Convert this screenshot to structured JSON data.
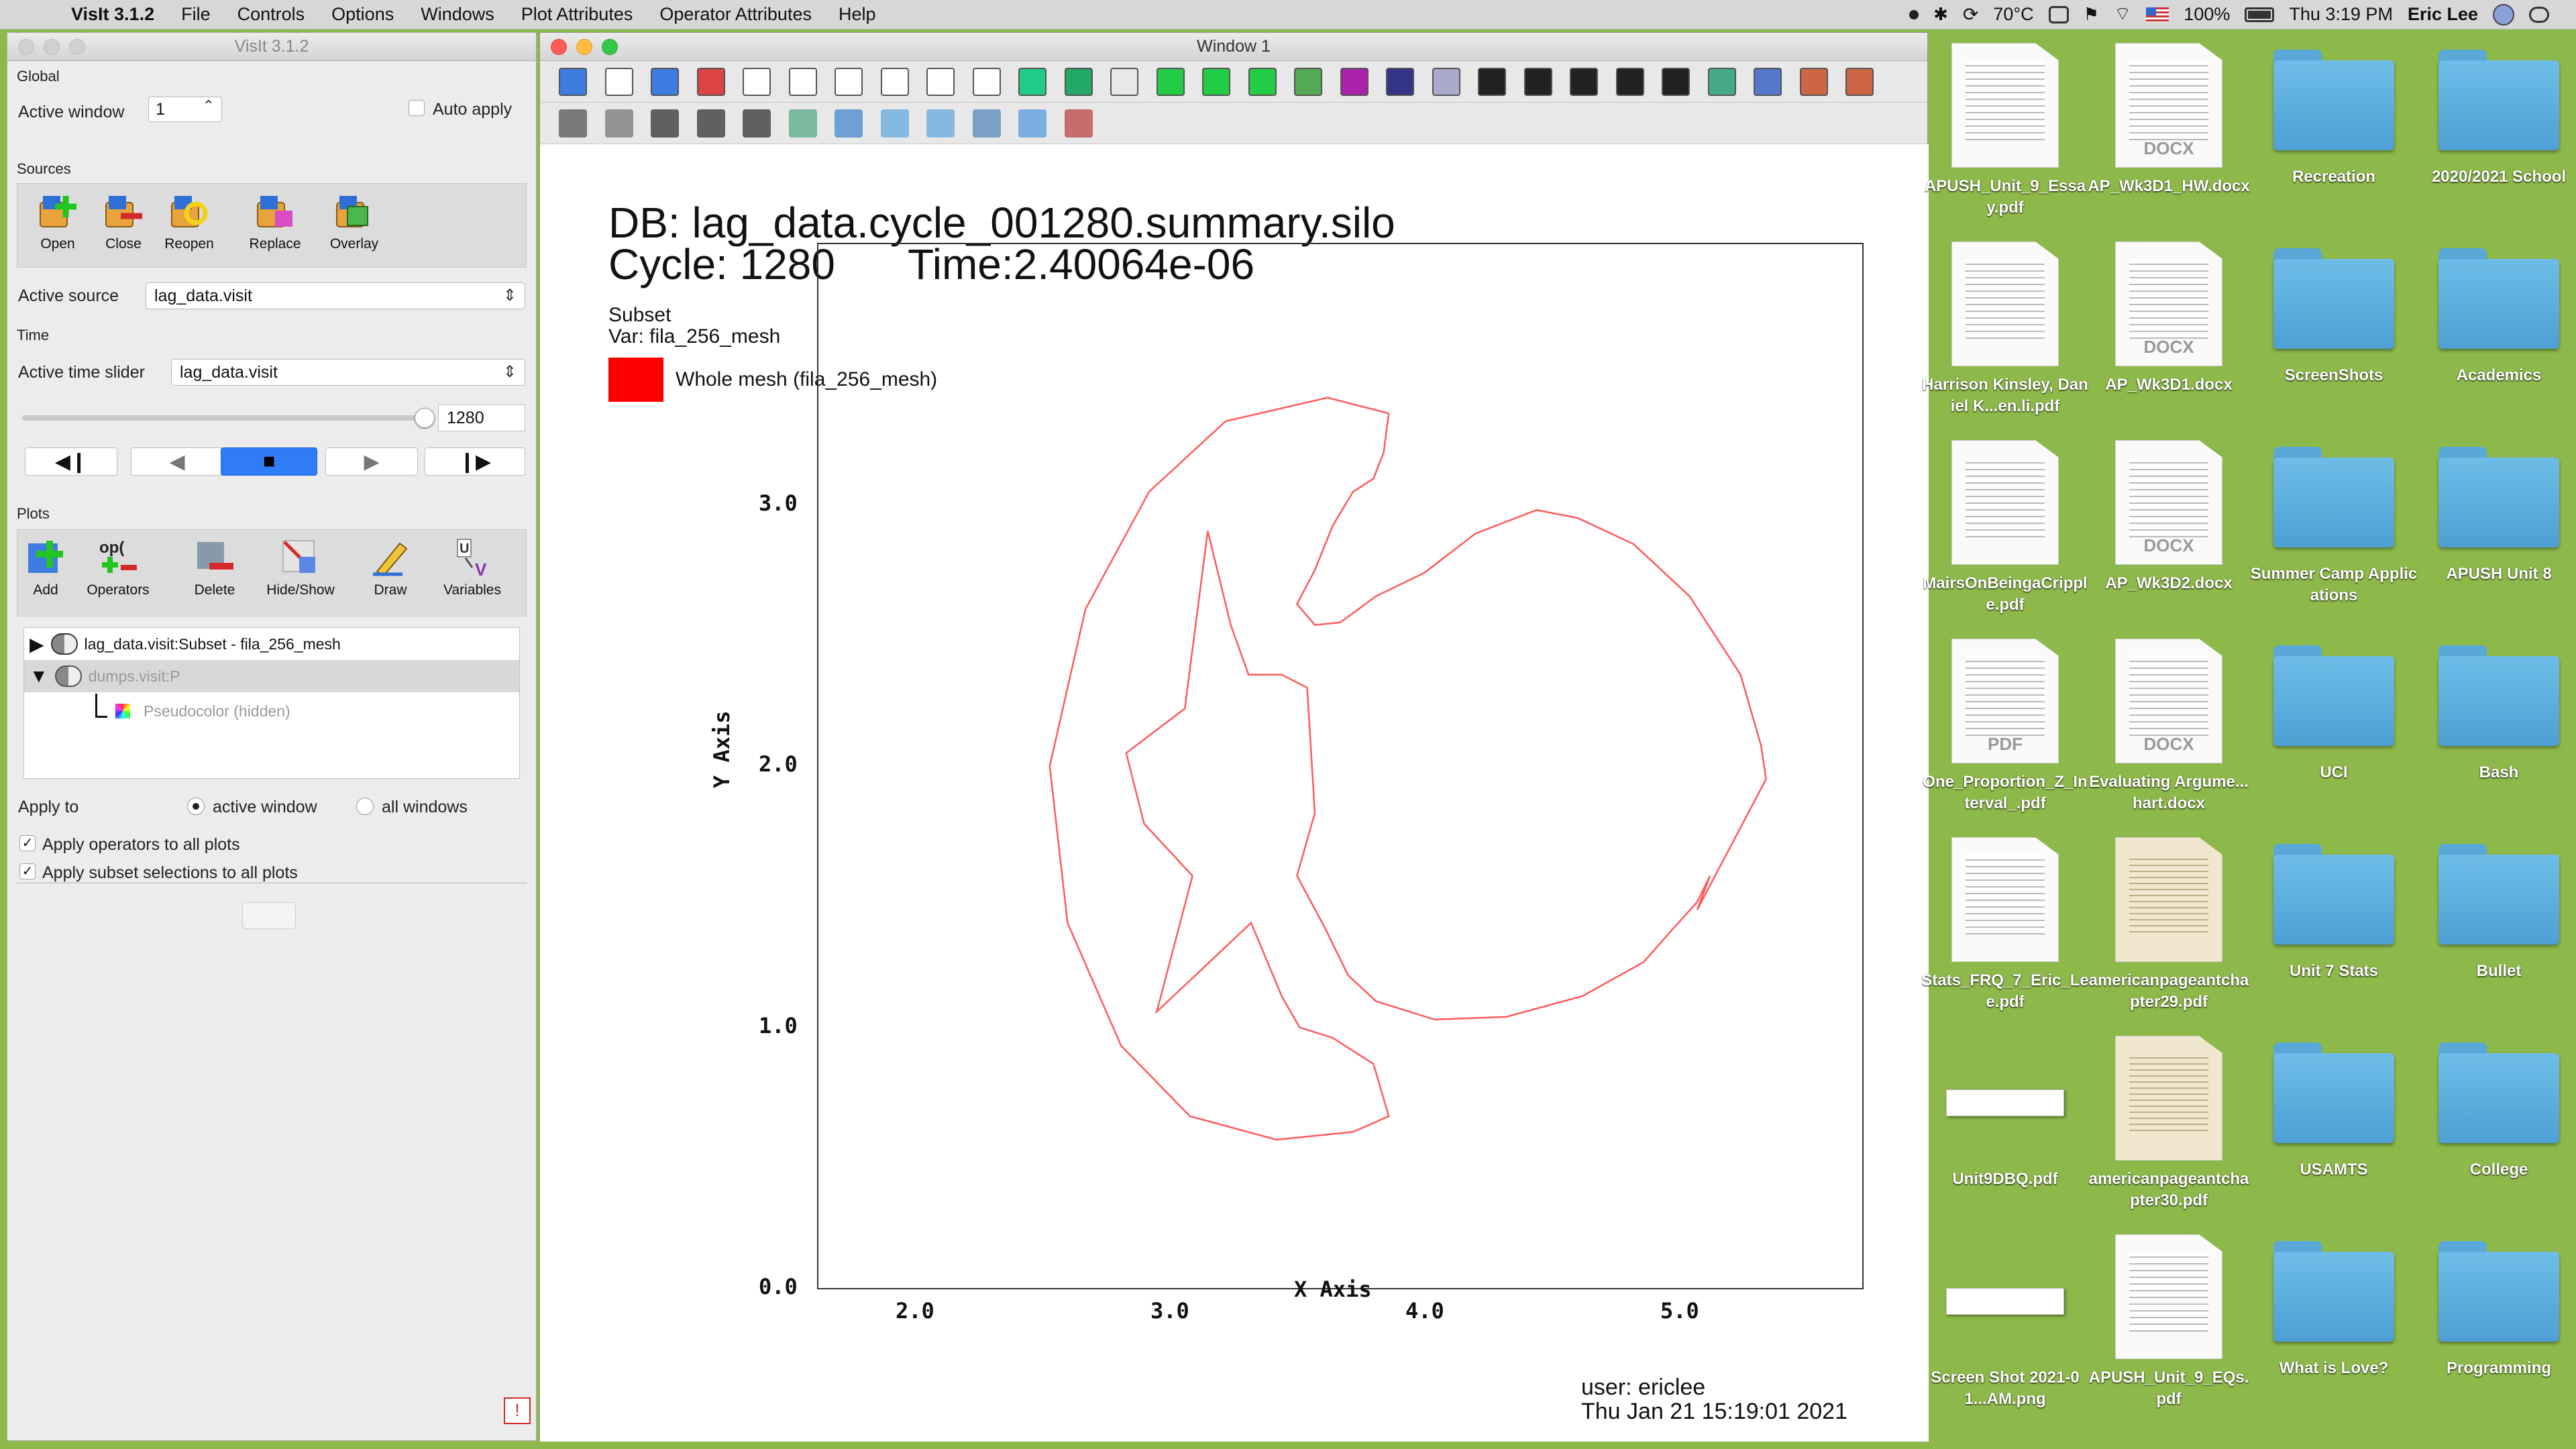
{
  "menubar": {
    "app_name": "VisIt 3.1.2",
    "items": [
      "File",
      "Controls",
      "Options",
      "Windows",
      "Plot Attributes",
      "Operator Attributes",
      "Help"
    ],
    "temperature": "70°C",
    "battery": "100%",
    "clock": "Thu 3:19 PM",
    "user": "Eric Lee"
  },
  "control_window": {
    "title": "VisIt 3.1.2",
    "global_label": "Global",
    "active_window_label": "Active window",
    "active_window_value": "1",
    "auto_apply_label": "Auto apply",
    "sources_label": "Sources",
    "source_buttons": [
      "Open",
      "Close",
      "Reopen",
      "Replace",
      "Overlay"
    ],
    "active_source_label": "Active source",
    "active_source_value": "lag_data.visit",
    "time_label": "Time",
    "active_time_slider_label": "Active time slider",
    "active_time_slider_value": "lag_data.visit",
    "time_value": "1280",
    "time_fraction": 1.0,
    "plots_label": "Plots",
    "plot_buttons": [
      "Add",
      "Operators",
      "Delete",
      "Hide/Show",
      "Draw",
      "Variables"
    ],
    "plot_list": [
      "lag_data.visit:Subset - fila_256_mesh",
      "dumps.visit:P",
      "Pseudocolor (hidden)"
    ],
    "apply_to_label": "Apply to",
    "apply_to_options": [
      "active window",
      "all windows"
    ],
    "apply_operators_label": "Apply operators to all plots",
    "apply_subset_label": "Apply subset selections to all plots"
  },
  "viewer_window": {
    "title": "Window 1",
    "db_line": "DB: lag_data.cycle_001280.summary.silo",
    "cycle_line": "Cycle: 1280",
    "time_line": "Time:2.40064e-06",
    "subset_label": "Subset",
    "var_label": "Var: fila_256_mesh",
    "legend_entry": "Whole mesh (fila_256_mesh)",
    "legend_color": "#ff0000",
    "user_line": "user: ericlee",
    "date_line": "Thu Jan 21 15:19:01 2021",
    "plot": {
      "xlabel": "X Axis",
      "ylabel": "Y Axis",
      "xlim": [
        1.6,
        5.7
      ],
      "ylim": [
        0.0,
        4.0
      ],
      "x_ticks": [
        "2.0",
        "3.0",
        "4.0",
        "5.0"
      ],
      "y_ticks": [
        "0.0",
        "1.0",
        "2.0",
        "3.0"
      ],
      "mesh_color": "#ff5a5a"
    }
  },
  "desktop": {
    "items": [
      {
        "label": "APUSH_Unit_9_Essay.pdf",
        "kind": "doc",
        "tag": ""
      },
      {
        "label": "AP_Wk3D1_HW.docx",
        "kind": "doc",
        "tag": "DOCX"
      },
      {
        "label": "Recreation",
        "kind": "folder",
        "tag": ""
      },
      {
        "label": "2020/2021 School",
        "kind": "folder",
        "tag": ""
      },
      {
        "label": "Harrison Kinsley, Daniel K...en.li.pdf",
        "kind": "doc",
        "tag": ""
      },
      {
        "label": "AP_Wk3D1.docx",
        "kind": "doc",
        "tag": "DOCX"
      },
      {
        "label": "ScreenShots",
        "kind": "folder",
        "tag": ""
      },
      {
        "label": "Academics",
        "kind": "folder",
        "tag": ""
      },
      {
        "label": "MairsOnBeingaCripple.pdf",
        "kind": "doc",
        "tag": ""
      },
      {
        "label": "AP_Wk3D2.docx",
        "kind": "doc",
        "tag": "DOCX"
      },
      {
        "label": "Summer Camp Applications",
        "kind": "folder",
        "tag": ""
      },
      {
        "label": "APUSH Unit 8",
        "kind": "folder",
        "tag": ""
      },
      {
        "label": "One_Proportion_Z_Interval_.pdf",
        "kind": "doc",
        "tag": "PDF"
      },
      {
        "label": "Evaluating Argume...hart.docx",
        "kind": "doc",
        "tag": "DOCX"
      },
      {
        "label": "UCI",
        "kind": "folder",
        "tag": ""
      },
      {
        "label": "Bash",
        "kind": "folder",
        "tag": ""
      },
      {
        "label": "Stats_FRQ_7_Eric_Lee.pdf",
        "kind": "doc",
        "tag": ""
      },
      {
        "label": "americanpageantchapter29.pdf",
        "kind": "paper",
        "tag": ""
      },
      {
        "label": "Unit 7 Stats",
        "kind": "folder",
        "tag": ""
      },
      {
        "label": "Bullet",
        "kind": "folder",
        "tag": ""
      },
      {
        "label": "Unit9DBQ.pdf",
        "kind": "shot",
        "tag": ""
      },
      {
        "label": "americanpageantchapter30.pdf",
        "kind": "paper",
        "tag": ""
      },
      {
        "label": "USAMTS",
        "kind": "folder",
        "tag": ""
      },
      {
        "label": "College",
        "kind": "folder",
        "tag": ""
      },
      {
        "label": "Screen Shot 2021-01...AM.png",
        "kind": "shot",
        "tag": ""
      },
      {
        "label": "APUSH_Unit_9_EQs.pdf",
        "kind": "doc",
        "tag": ""
      },
      {
        "label": "What is Love?",
        "kind": "folder",
        "tag": ""
      },
      {
        "label": "Programming",
        "kind": "folder",
        "tag": ""
      }
    ]
  }
}
